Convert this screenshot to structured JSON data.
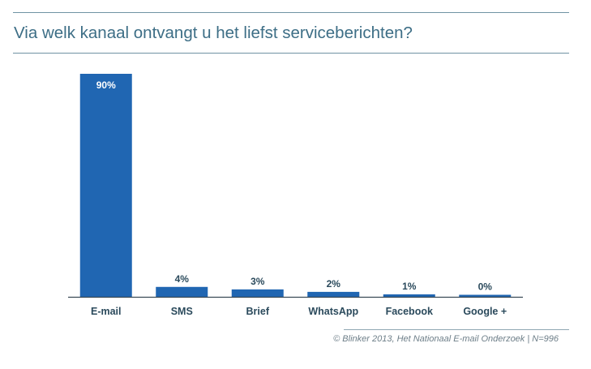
{
  "header": {
    "title": "Via welk kanaal ontvangt u het liefst serviceberichten?"
  },
  "chart_data": {
    "type": "bar",
    "title": "Via welk kanaal ontvangt u het liefst serviceberichten?",
    "categories": [
      "E-mail",
      "SMS",
      "Brief",
      "WhatsApp",
      "Facebook",
      "Google +"
    ],
    "values": [
      90,
      4,
      3,
      2,
      1,
      0
    ],
    "value_labels": [
      "90%",
      "4%",
      "3%",
      "2%",
      "1%",
      "0%"
    ],
    "unit": "%",
    "xlabel": "",
    "ylabel": "",
    "ylim": [
      0,
      90
    ],
    "grid": false,
    "legend": "none",
    "bar_color": "#2066b2",
    "label_color_inside": "#ffffff",
    "label_color_outside": "#2b4a5c"
  },
  "footer": {
    "source": "© Blinker 2013, Het Nationaal E-mail Onderzoek | N=996"
  }
}
